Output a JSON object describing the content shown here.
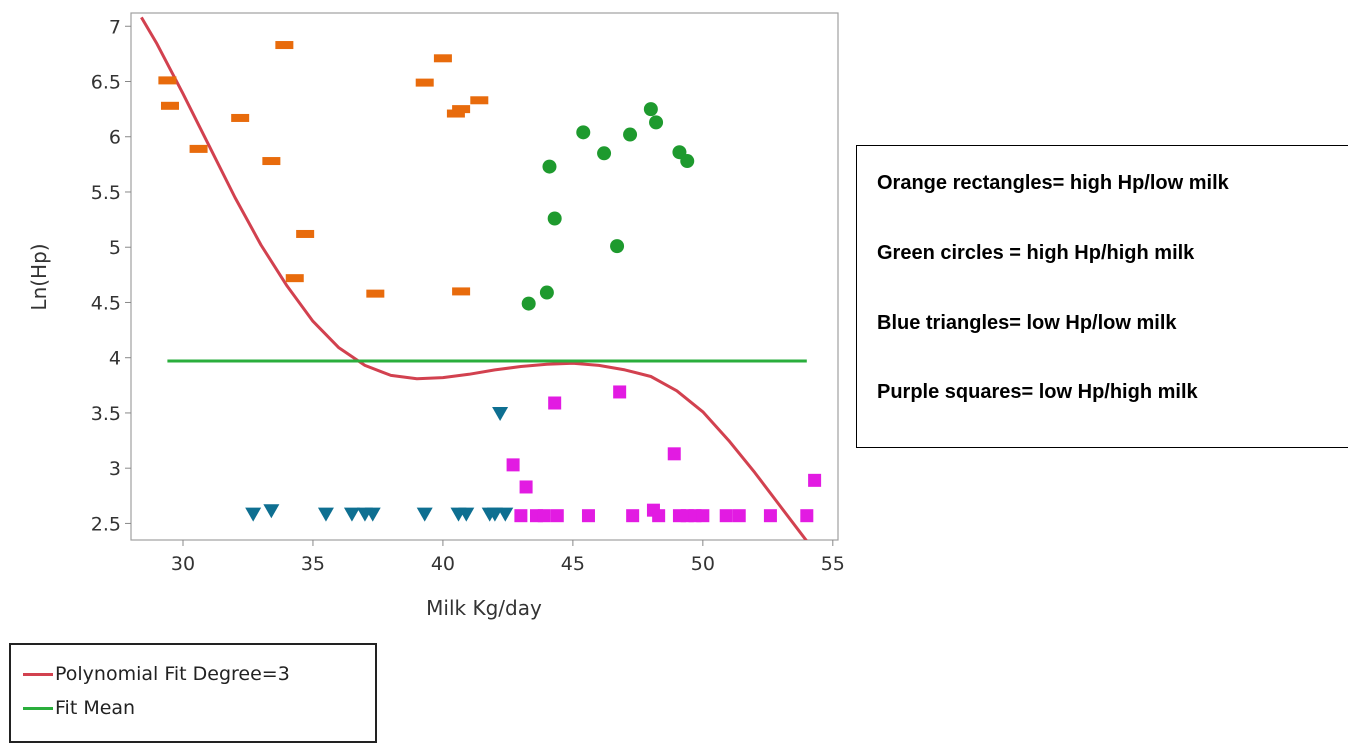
{
  "chart_data": {
    "type": "scatter",
    "xlabel": "Milk Kg/day",
    "ylabel": "Ln(Hp)",
    "xlim": [
      28,
      55.2
    ],
    "ylim": [
      2.35,
      7.12
    ],
    "xticks": [
      30,
      35,
      40,
      45,
      50,
      55
    ],
    "xtick_labels": [
      "30",
      "35",
      "40",
      "45",
      "50",
      "55"
    ],
    "yticks": [
      2.5,
      3,
      3.5,
      4,
      4.5,
      5,
      5.5,
      6,
      6.5,
      7
    ],
    "ytick_labels": [
      "2.5",
      "3",
      "3.5",
      "4",
      "4.5",
      "5",
      "5.5",
      "6",
      "6.5",
      "7"
    ],
    "grid": false,
    "series": [
      {
        "marker": "rectangle",
        "color": "#e86b0c",
        "points": [
          [
            29.4,
            6.51
          ],
          [
            29.5,
            6.28
          ],
          [
            30.6,
            5.89
          ],
          [
            32.2,
            6.17
          ],
          [
            33.4,
            5.78
          ],
          [
            33.9,
            6.83
          ],
          [
            34.3,
            4.72
          ],
          [
            34.7,
            5.12
          ],
          [
            37.4,
            4.58
          ],
          [
            39.3,
            6.49
          ],
          [
            40.0,
            6.71
          ],
          [
            40.5,
            6.21
          ],
          [
            40.7,
            6.25
          ],
          [
            40.7,
            4.6
          ],
          [
            41.4,
            6.33
          ]
        ]
      },
      {
        "marker": "circle",
        "color": "#1e9a2e",
        "points": [
          [
            43.3,
            4.49
          ],
          [
            44.0,
            4.59
          ],
          [
            44.1,
            5.73
          ],
          [
            44.3,
            5.26
          ],
          [
            45.4,
            6.04
          ],
          [
            46.2,
            5.85
          ],
          [
            46.7,
            5.01
          ],
          [
            47.2,
            6.02
          ],
          [
            48.0,
            6.25
          ],
          [
            48.2,
            6.13
          ],
          [
            49.1,
            5.86
          ],
          [
            49.4,
            5.78
          ]
        ]
      },
      {
        "marker": "triangle-down",
        "color": "#0e6f91",
        "points": [
          [
            32.7,
            2.58
          ],
          [
            33.4,
            2.61
          ],
          [
            35.5,
            2.58
          ],
          [
            36.5,
            2.58
          ],
          [
            37.0,
            2.58
          ],
          [
            37.3,
            2.58
          ],
          [
            39.3,
            2.58
          ],
          [
            40.6,
            2.58
          ],
          [
            40.9,
            2.58
          ],
          [
            41.8,
            2.58
          ],
          [
            42.0,
            2.58
          ],
          [
            42.2,
            3.49
          ],
          [
            42.4,
            2.58
          ]
        ]
      },
      {
        "marker": "square",
        "color": "#e21be2",
        "points": [
          [
            42.7,
            3.03
          ],
          [
            43.0,
            2.57
          ],
          [
            43.2,
            2.83
          ],
          [
            43.6,
            2.57
          ],
          [
            43.9,
            2.57
          ],
          [
            44.3,
            3.59
          ],
          [
            44.4,
            2.57
          ],
          [
            45.6,
            2.57
          ],
          [
            46.8,
            3.69
          ],
          [
            47.3,
            2.57
          ],
          [
            48.1,
            2.62
          ],
          [
            48.3,
            2.57
          ],
          [
            48.9,
            3.13
          ],
          [
            49.1,
            2.57
          ],
          [
            49.4,
            2.57
          ],
          [
            49.7,
            2.57
          ],
          [
            50.0,
            2.57
          ],
          [
            50.9,
            2.57
          ],
          [
            51.4,
            2.57
          ],
          [
            52.6,
            2.57
          ],
          [
            54.0,
            2.57
          ],
          [
            54.3,
            2.89
          ]
        ]
      }
    ],
    "fits": [
      {
        "name": "Polynomial Fit Degree=3",
        "color": "#d2414f",
        "points": [
          [
            28.4,
            7.08
          ],
          [
            29.0,
            6.84
          ],
          [
            30.0,
            6.39
          ],
          [
            31.0,
            5.92
          ],
          [
            32.0,
            5.45
          ],
          [
            33.0,
            5.02
          ],
          [
            34.0,
            4.65
          ],
          [
            35.0,
            4.33
          ],
          [
            36.0,
            4.09
          ],
          [
            37.0,
            3.93
          ],
          [
            38.0,
            3.84
          ],
          [
            39.0,
            3.81
          ],
          [
            40.0,
            3.82
          ],
          [
            41.0,
            3.85
          ],
          [
            42.0,
            3.89
          ],
          [
            43.0,
            3.92
          ],
          [
            44.0,
            3.94
          ],
          [
            45.0,
            3.95
          ],
          [
            46.0,
            3.93
          ],
          [
            47.0,
            3.89
          ],
          [
            48.0,
            3.83
          ],
          [
            49.0,
            3.7
          ],
          [
            50.0,
            3.51
          ],
          [
            51.0,
            3.25
          ],
          [
            52.0,
            2.96
          ],
          [
            53.0,
            2.65
          ],
          [
            54.0,
            2.34
          ]
        ]
      },
      {
        "name": "Fit Mean",
        "color": "#2aae3c",
        "points": [
          [
            29.4,
            3.97
          ],
          [
            54.0,
            3.97
          ]
        ]
      }
    ]
  },
  "legend": {
    "items": [
      {
        "label": "Polynomial Fit Degree=3",
        "color": "#d2414f"
      },
      {
        "label": "Fit Mean",
        "color": "#2aae3c"
      }
    ]
  },
  "annotation": {
    "lines": [
      "Orange rectangles= high Hp/low milk",
      "Green circles = high Hp/high milk",
      "Blue triangles= low Hp/low milk",
      "Purple squares= low Hp/high milk"
    ]
  }
}
